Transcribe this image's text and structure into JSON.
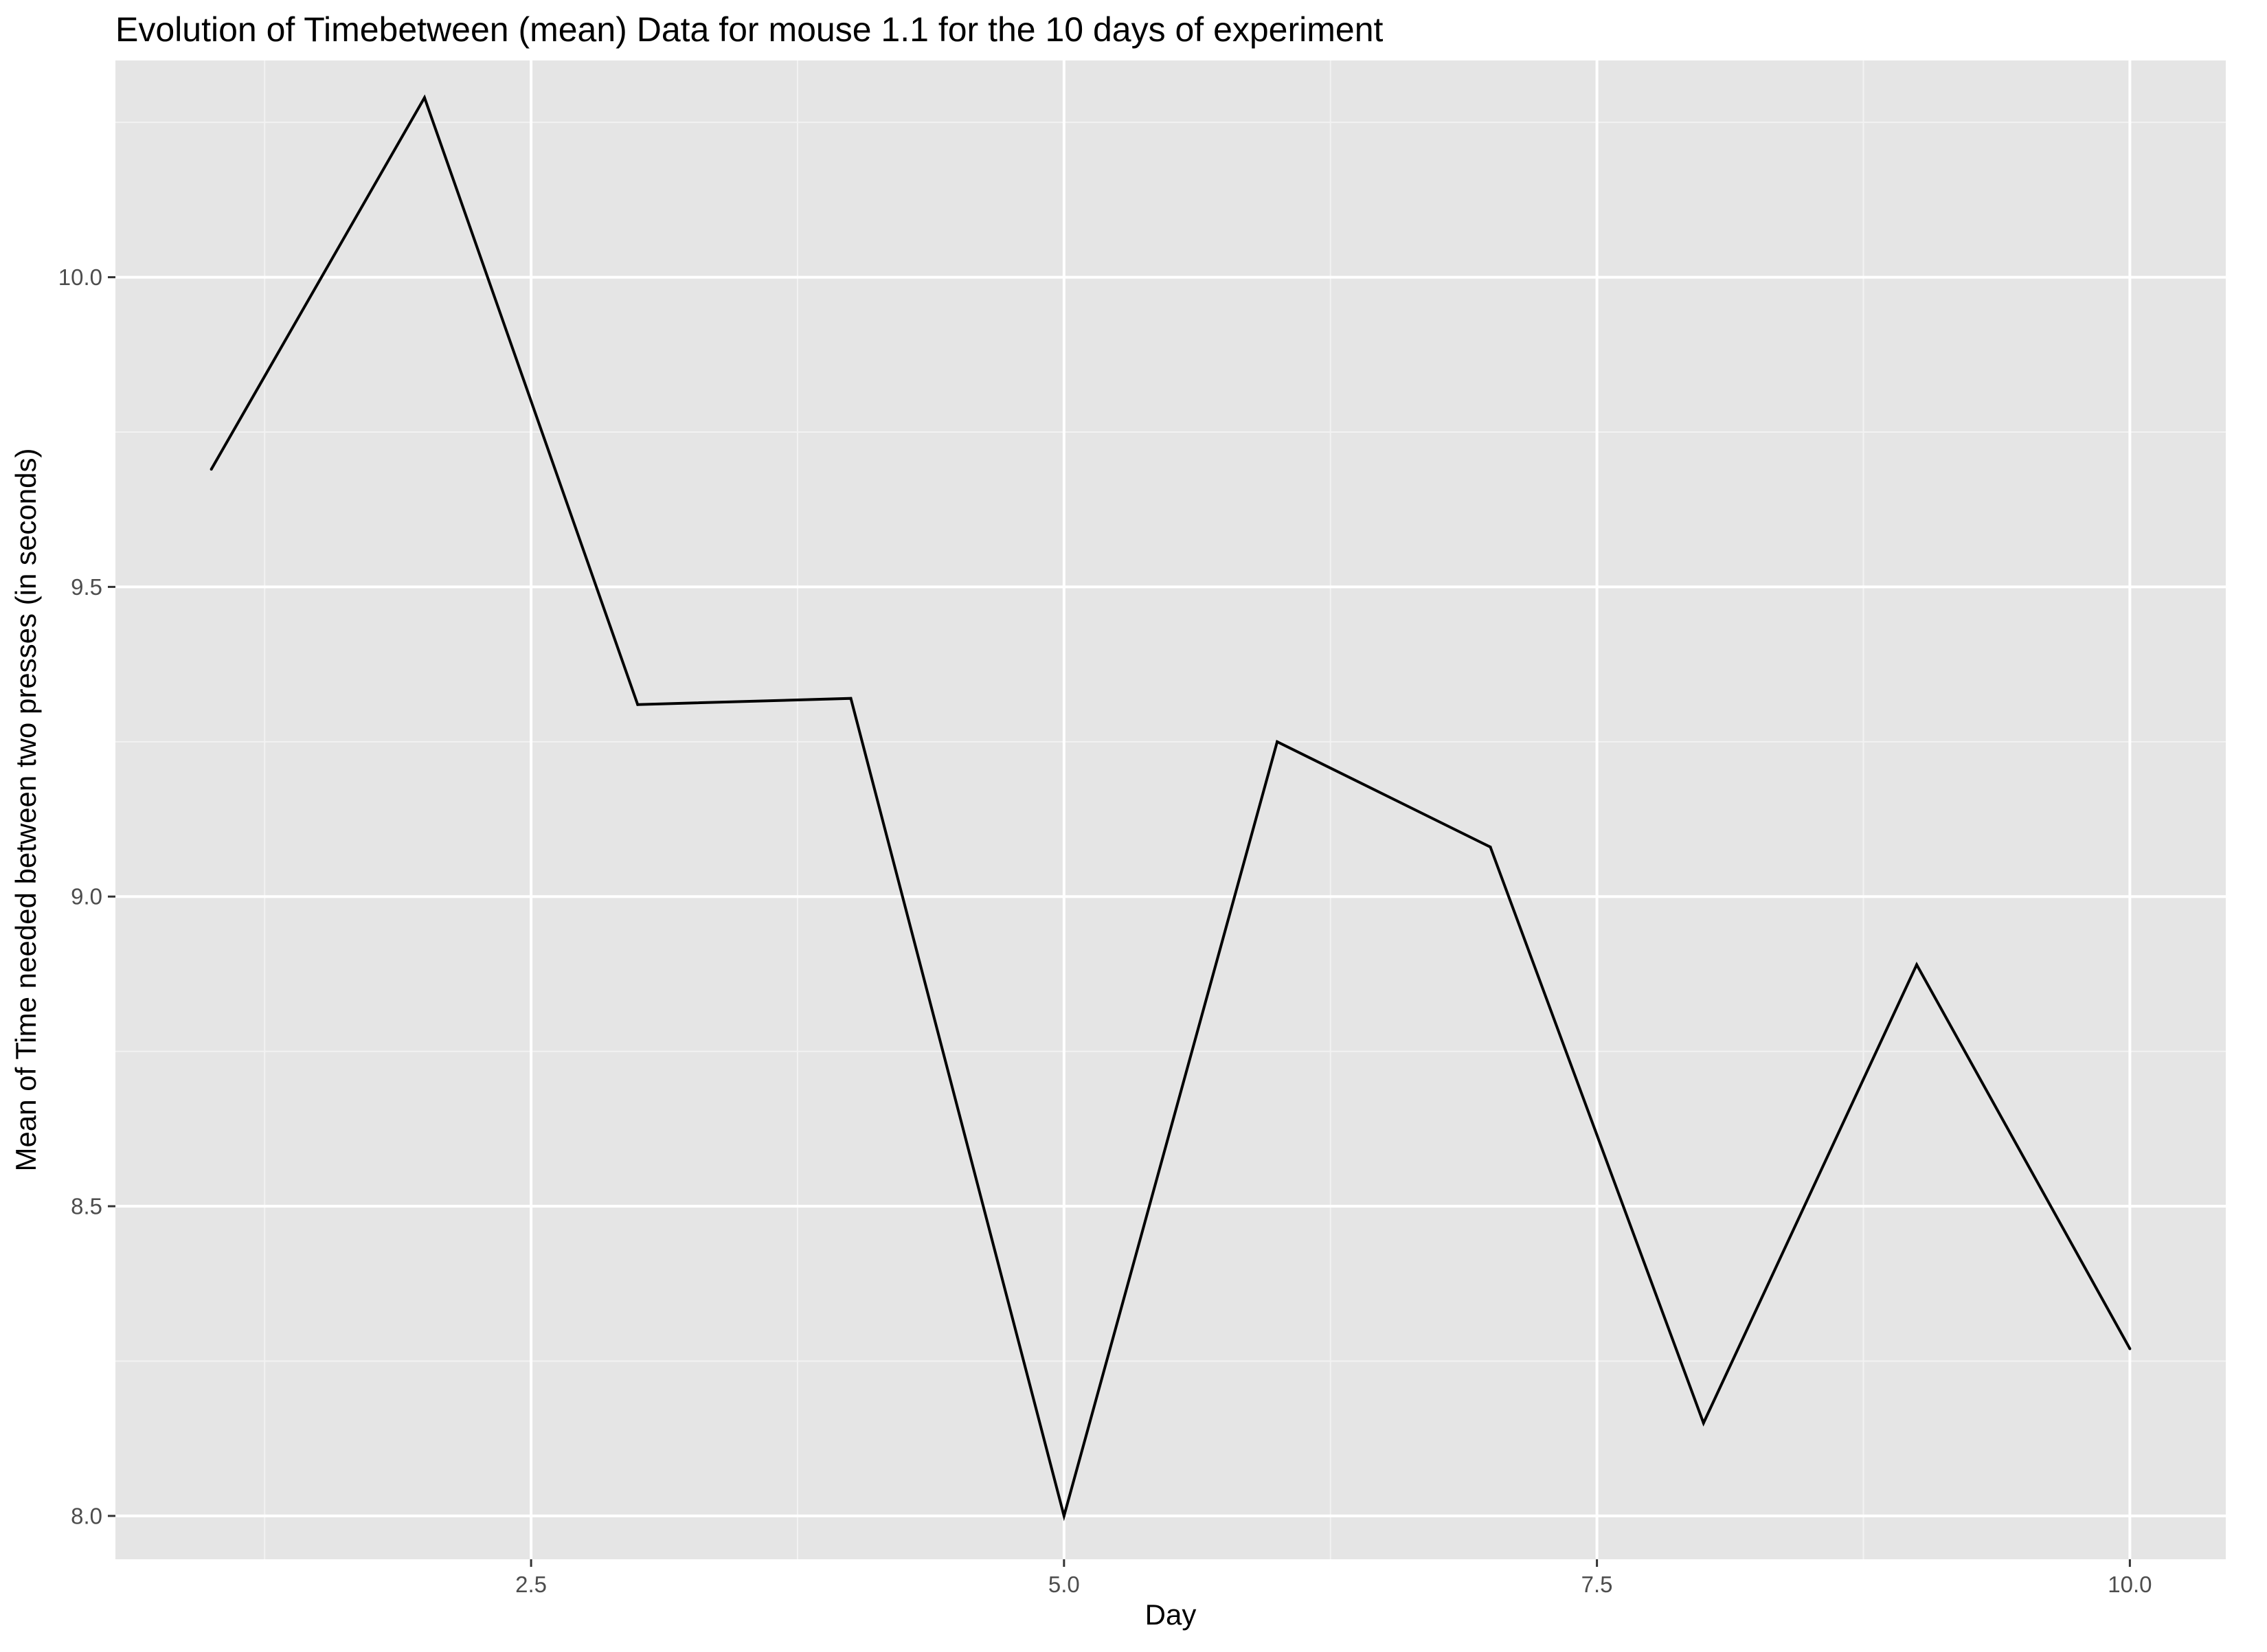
{
  "chart_data": {
    "type": "line",
    "title": "Evolution of Timebetween (mean) Data for mouse 1.1 for the 10 days of experiment",
    "xlabel": "Day",
    "ylabel": "Mean of Time needed between two presses (in seconds)",
    "x": [
      1,
      2,
      3,
      4,
      5,
      6,
      7,
      8,
      9,
      10
    ],
    "series": [
      {
        "values": [
          9.69,
          10.29,
          9.31,
          9.32,
          8.0,
          9.25,
          9.08,
          8.15,
          8.89,
          8.27
        ]
      }
    ],
    "xlim": [
      0.55,
      10.45
    ],
    "ylim": [
      7.93,
      10.35
    ],
    "x_ticks": [
      2.5,
      5.0,
      7.5,
      10.0
    ],
    "x_tick_labels": [
      "2.5",
      "5.0",
      "7.5",
      "10.0"
    ],
    "y_ticks": [
      8.0,
      8.5,
      9.0,
      9.5,
      10.0
    ],
    "y_tick_labels": [
      "8.0",
      "8.5",
      "9.0",
      "9.5",
      "10.0"
    ],
    "grid": true,
    "colors": {
      "panel_background": "#e5e5e5",
      "grid_major": "#ffffff",
      "grid_minor": "#f2f2f2",
      "line": "#000000",
      "tick_label": "#4d4d4d",
      "tick_mark": "#333333"
    }
  }
}
